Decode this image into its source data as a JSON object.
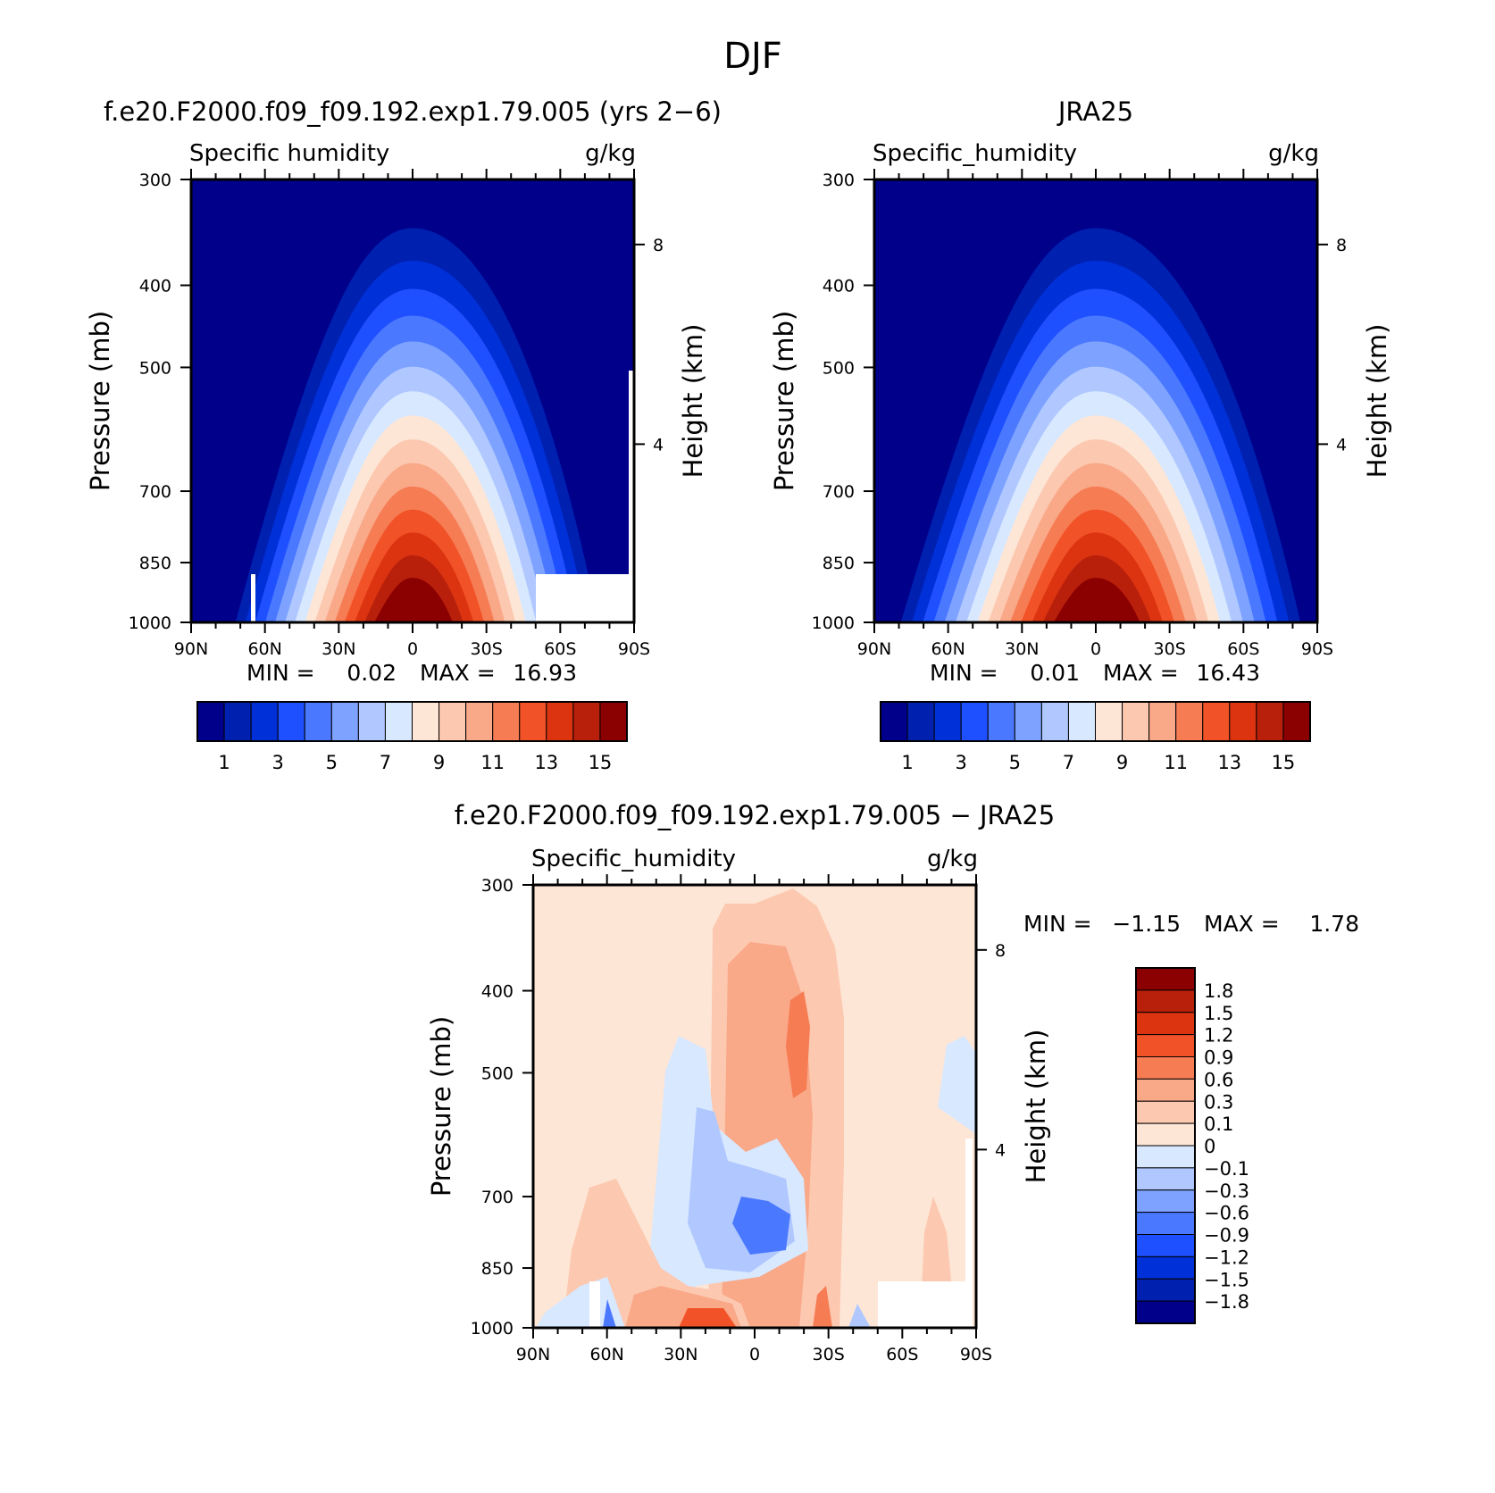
{
  "figure_title": "DJF",
  "chart_data": [
    {
      "type": "heatmap",
      "panel": "model",
      "title": "f.e20.F2000.f09_f09.192.exp1.79.005 (yrs 2−6)",
      "variable": "Specific humidity",
      "units": "g/kg",
      "xlabel": "",
      "ylabel": "Pressure (mb)",
      "ylabel_right": "Height (km)",
      "x_ticks": [
        "90N",
        "60N",
        "30N",
        "0",
        "30S",
        "60S",
        "90S"
      ],
      "y_ticks": [
        "300",
        "400",
        "500",
        "700",
        "850",
        "1000"
      ],
      "right_ticks": [
        "8",
        "4"
      ],
      "stats": {
        "min_label": "MIN =",
        "min": "0.02",
        "max_label": "MAX =",
        "max": "16.93"
      },
      "peak_lat": 0,
      "colorbar": {
        "labels": [
          "1",
          "3",
          "5",
          "7",
          "9",
          "11",
          "13",
          "15"
        ],
        "colors": [
          "#00008b",
          "#0020b0",
          "#0030d8",
          "#1e50ff",
          "#4a78ff",
          "#7ea2ff",
          "#b0c8ff",
          "#d8e8ff",
          "#fde6d6",
          "#fcc8b0",
          "#f9a888",
          "#f67c54",
          "#f25227",
          "#dc3410",
          "#b8200c",
          "#8b0000"
        ]
      }
    },
    {
      "type": "heatmap",
      "panel": "obs",
      "title": "JRA25",
      "variable": "Specific_humidity",
      "units": "g/kg",
      "xlabel": "",
      "ylabel": "Pressure (mb)",
      "ylabel_right": "Height (km)",
      "x_ticks": [
        "90N",
        "60N",
        "30N",
        "0",
        "30S",
        "60S",
        "90S"
      ],
      "y_ticks": [
        "300",
        "400",
        "500",
        "700",
        "850",
        "1000"
      ],
      "right_ticks": [
        "8",
        "4"
      ],
      "stats": {
        "min_label": "MIN =",
        "min": "0.01",
        "max_label": "MAX =",
        "max": "16.43"
      },
      "peak_lat": 0,
      "colorbar": {
        "labels": [
          "1",
          "3",
          "5",
          "7",
          "9",
          "11",
          "13",
          "15"
        ],
        "colors": [
          "#00008b",
          "#0020b0",
          "#0030d8",
          "#1e50ff",
          "#4a78ff",
          "#7ea2ff",
          "#b0c8ff",
          "#d8e8ff",
          "#fde6d6",
          "#fcc8b0",
          "#f9a888",
          "#f67c54",
          "#f25227",
          "#dc3410",
          "#b8200c",
          "#8b0000"
        ]
      }
    },
    {
      "type": "heatmap",
      "panel": "diff",
      "title": "f.e20.F2000.f09_f09.192.exp1.79.005 − JRA25",
      "variable": "Specific_humidity",
      "units": "g/kg",
      "xlabel": "",
      "ylabel": "Pressure (mb)",
      "ylabel_right": "Height (km)",
      "x_ticks": [
        "90N",
        "60N",
        "30N",
        "0",
        "30S",
        "60S",
        "90S"
      ],
      "y_ticks": [
        "300",
        "400",
        "500",
        "700",
        "850",
        "1000"
      ],
      "right_ticks": [
        "8",
        "4"
      ],
      "stats": {
        "min_label": "MIN =",
        "min": "−1.15",
        "max_label": "MAX =",
        "max": "1.78"
      },
      "colorbar": {
        "labels": [
          "1.8",
          "1.5",
          "1.2",
          "0.9",
          "0.6",
          "0.3",
          "0.1",
          "0",
          "−0.1",
          "−0.3",
          "−0.6",
          "−0.9",
          "−1.2",
          "−1.5",
          "−1.8"
        ],
        "colors": [
          "#8b0000",
          "#b8200c",
          "#dc3410",
          "#f25227",
          "#f67c54",
          "#f9a888",
          "#fcc8b0",
          "#fde6d6",
          "#d8e8ff",
          "#b0c8ff",
          "#7ea2ff",
          "#4a78ff",
          "#1e50ff",
          "#0030d8",
          "#0020b0",
          "#00008b"
        ]
      }
    }
  ]
}
